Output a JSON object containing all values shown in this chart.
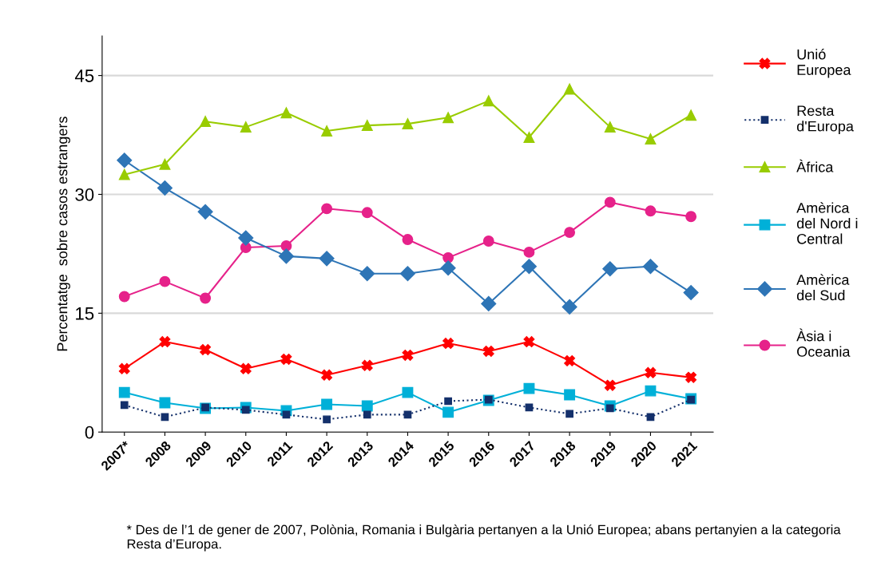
{
  "chart_data": {
    "type": "line",
    "ylabel": "Percentatge  sobre casos estrangers",
    "categories": [
      "2007*",
      "2008",
      "2009",
      "2010",
      "2011",
      "2012",
      "2013",
      "2014",
      "2015",
      "2016",
      "2017",
      "2018",
      "2019",
      "2020",
      "2021"
    ],
    "ylim": [
      0,
      50
    ],
    "yticks": [
      0,
      15,
      30,
      45
    ],
    "grid": "y",
    "legend": "right",
    "series": [
      {
        "name": "Unió\nEuropea",
        "color": "#ff0000",
        "marker": "cross",
        "line_style": "solid",
        "values": [
          8.0,
          11.4,
          10.4,
          8.0,
          9.2,
          7.2,
          8.4,
          9.7,
          11.2,
          10.2,
          11.4,
          9.0,
          5.9,
          7.5,
          6.9
        ]
      },
      {
        "name": "Resta\nd'Europa",
        "color": "#14306b",
        "marker": "square",
        "line_style": "dotted",
        "values": [
          3.4,
          1.9,
          3.1,
          2.8,
          2.2,
          1.6,
          2.2,
          2.2,
          3.9,
          4.1,
          3.1,
          2.3,
          3.0,
          1.9,
          4.1
        ]
      },
      {
        "name": "Àfrica",
        "color": "#99cc00",
        "marker": "triangle",
        "line_style": "solid",
        "values": [
          32.5,
          33.8,
          39.2,
          38.5,
          40.3,
          38.0,
          38.7,
          38.9,
          39.7,
          41.8,
          37.2,
          43.3,
          38.5,
          37.0,
          40.0
        ]
      },
      {
        "name": "Amèrica\ndel Nord i\nCentral",
        "color": "#00b0d8",
        "marker": "square",
        "line_style": "solid",
        "values": [
          5.0,
          3.7,
          3.0,
          3.1,
          2.7,
          3.5,
          3.3,
          5.0,
          2.5,
          4.0,
          5.5,
          4.7,
          3.3,
          5.2,
          4.2
        ]
      },
      {
        "name": "Amèrica\ndel Sud",
        "color": "#2e75b6",
        "marker": "diamond",
        "line_style": "solid",
        "values": [
          34.3,
          30.8,
          27.8,
          24.5,
          22.2,
          21.9,
          20.0,
          20.0,
          20.7,
          16.2,
          20.9,
          15.8,
          20.6,
          20.9,
          17.6
        ]
      },
      {
        "name": "Àsia i\nOceania",
        "color": "#e6228a",
        "marker": "circle",
        "line_style": "solid",
        "values": [
          17.1,
          19.0,
          16.9,
          23.3,
          23.5,
          28.2,
          27.7,
          24.3,
          22.0,
          24.1,
          22.7,
          25.2,
          29.0,
          27.9,
          27.2
        ]
      }
    ],
    "annotations": [
      "* Des de l’1 de gener de 2007, Polònia, Romania i Bulgària pertanyen a la Unió Europea; abans pertanyien a la categoria Resta d’Europa."
    ]
  }
}
